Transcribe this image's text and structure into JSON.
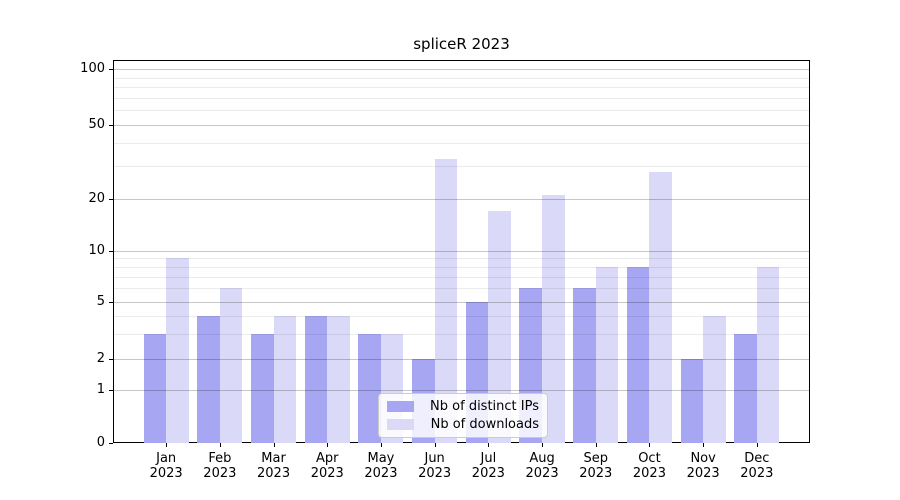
{
  "chart_data": {
    "type": "bar",
    "title": "spliceR 2023",
    "year": "2023",
    "months": [
      "Jan",
      "Feb",
      "Mar",
      "Apr",
      "May",
      "Jun",
      "Jul",
      "Aug",
      "Sep",
      "Oct",
      "Nov",
      "Dec"
    ],
    "series": [
      {
        "name": "Nb of distinct IPs",
        "color": "#a6a6f2",
        "values": [
          3,
          4,
          3,
          4,
          3,
          2,
          5,
          6,
          6,
          8,
          2,
          3
        ]
      },
      {
        "name": "Nb of downloads",
        "color": "#dadaf8",
        "values": [
          9,
          6,
          4,
          4,
          3,
          33,
          17,
          21,
          8,
          28,
          4,
          8
        ]
      }
    ],
    "y_axis": {
      "scale": "log-like",
      "major_ticks": [
        0,
        1,
        2,
        5,
        10,
        20,
        50,
        100
      ],
      "minor_gridlines": [
        3,
        4,
        6,
        7,
        8,
        9,
        30,
        40,
        60,
        70,
        80,
        90
      ],
      "ylim": [
        0,
        100
      ]
    },
    "grid": true,
    "legend_position": "lower center",
    "colors": {
      "axis": "#000000",
      "major_grid": "#c8c8c8",
      "minor_grid": "#ebebeb",
      "background": "#ffffff"
    }
  }
}
